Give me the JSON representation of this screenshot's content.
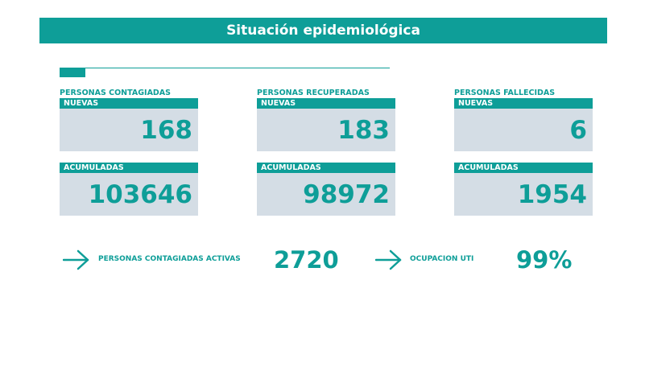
{
  "header": {
    "title": "Situación epidemiológica"
  },
  "colors": {
    "accent": "#0e9e98",
    "box_bg": "#d4dde5"
  },
  "panels": [
    {
      "label": "PERSONAS CONTAGIADAS",
      "new_label": "NUEVAS",
      "new_value": "168",
      "acc_label": "ACUMULADAS",
      "acc_value": "103646"
    },
    {
      "label": "PERSONAS RECUPERADAS",
      "new_label": "NUEVAS",
      "new_value": "183",
      "acc_label": "ACUMULADAS",
      "acc_value": "98972"
    },
    {
      "label": "PERSONAS FALLECIDAS",
      "new_label": "NUEVAS",
      "new_value": "6",
      "acc_label": "ACUMULADAS",
      "acc_value": "1954"
    }
  ],
  "summary": {
    "active_label": "PERSONAS CONTAGIADAS ACTIVAS",
    "active_value": "2720",
    "uti_label": "OCUPACION UTI",
    "uti_value": "99%",
    "icon": "arrow-right-icon"
  }
}
